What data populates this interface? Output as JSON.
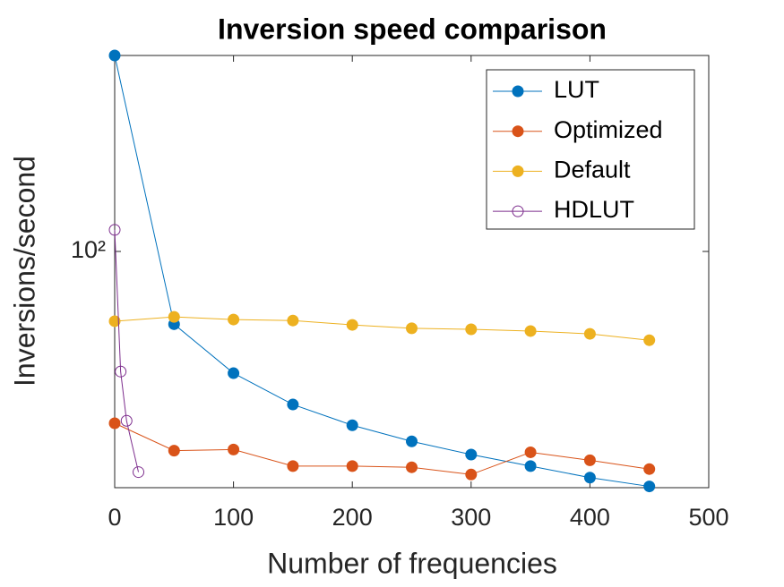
{
  "chart_data": {
    "type": "line",
    "title": "Inversion speed comparison",
    "xlabel": "Number of frequencies",
    "ylabel": "Inversions/second",
    "yscale": "log",
    "xlim": [
      0,
      500
    ],
    "xticks": [
      0,
      100,
      200,
      300,
      400,
      500
    ],
    "ylim": [
      39.3,
      217
    ],
    "yticks": [
      {
        "value": 100,
        "label": "10²"
      }
    ],
    "legend": "top-right",
    "series": [
      {
        "name": "LUT",
        "color": "#0072BD",
        "marker_filled": true,
        "x": [
          0,
          50,
          100,
          150,
          200,
          250,
          300,
          350,
          400,
          450
        ],
        "values": [
          217,
          75,
          61.8,
          54.6,
          50.3,
          47.2,
          44.8,
          42.8,
          40.9,
          39.5
        ]
      },
      {
        "name": "Optimized",
        "color": "#D95319",
        "marker_filled": true,
        "x": [
          0,
          50,
          100,
          150,
          200,
          250,
          300,
          350,
          400,
          450
        ],
        "values": [
          50.7,
          45.5,
          45.7,
          42.8,
          42.8,
          42.6,
          41.4,
          45.2,
          43.8,
          42.3
        ]
      },
      {
        "name": "Default",
        "color": "#EDB120",
        "marker_filled": true,
        "x": [
          0,
          50,
          100,
          150,
          200,
          250,
          300,
          350,
          400,
          450
        ],
        "values": [
          75.9,
          77.2,
          76.4,
          76.1,
          74.8,
          73.8,
          73.5,
          73.0,
          72.2,
          70.4
        ]
      },
      {
        "name": "HDLUT",
        "color": "#7E2F8E",
        "marker_filled": false,
        "x": [
          0,
          5,
          10,
          20
        ],
        "values": [
          108.9,
          62.2,
          51.2,
          41.8
        ]
      }
    ]
  }
}
